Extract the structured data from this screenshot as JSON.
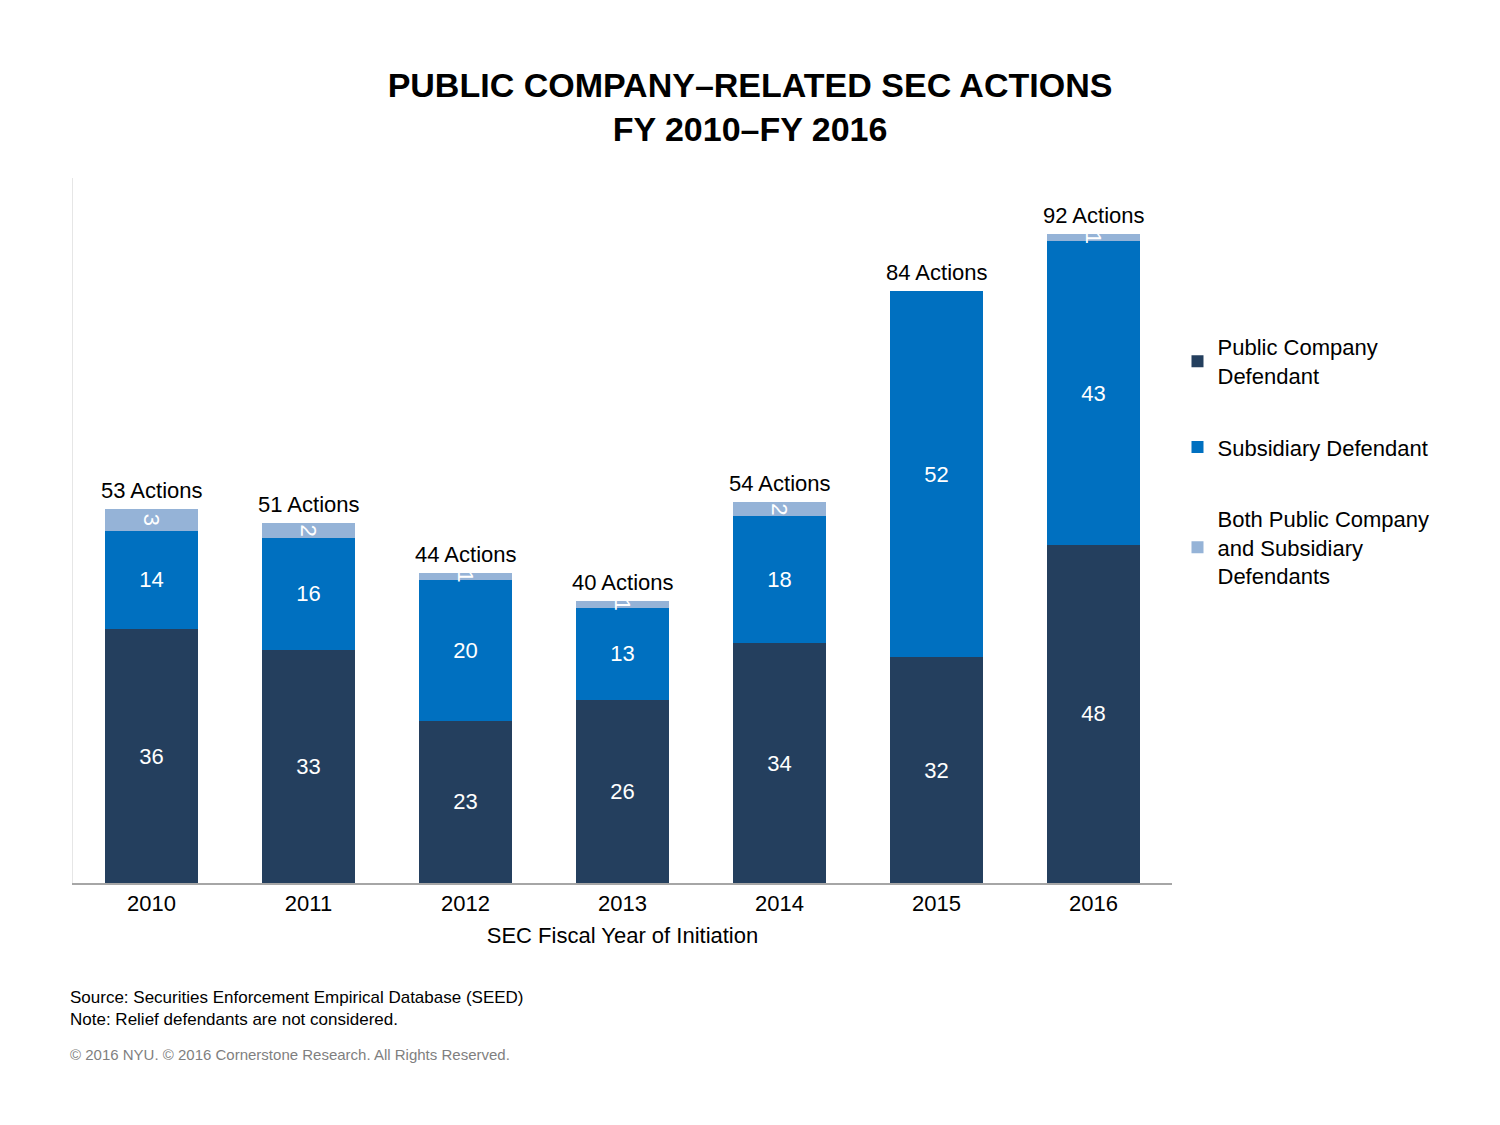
{
  "chart_data": {
    "type": "bar",
    "title": "PUBLIC COMPANY–RELATED SEC ACTIONS\nFY 2010–FY 2016",
    "x_label": "SEC Fiscal Year of Initiation",
    "categories": [
      "2010",
      "2011",
      "2012",
      "2013",
      "2014",
      "2015",
      "2016"
    ],
    "series": [
      {
        "name": "Public Company Defendant",
        "color": "#243f5e",
        "values": [
          36,
          33,
          23,
          26,
          34,
          32,
          48
        ]
      },
      {
        "name": "Subsidiary Defendant",
        "color": "#0070c0",
        "values": [
          14,
          16,
          20,
          13,
          18,
          52,
          43
        ]
      },
      {
        "name": "Both Public Company and Subsidiary Defendants",
        "color": "#95b3d7",
        "values": [
          3,
          2,
          1,
          1,
          2,
          null,
          1
        ]
      }
    ],
    "annotations": [
      "53 Actions",
      "51 Actions",
      "44 Actions",
      "40 Actions",
      "54 Actions",
      "84 Actions",
      "92 Actions"
    ],
    "footnotes": [
      "Source: Securities Enforcement Empirical Database (SEED)",
      "Note: Relief defendants are not considered.",
      "© 2016 NYU. © 2016 Cornerstone Research. All Rights Reserved."
    ],
    "ylim": [
      0,
      100
    ],
    "stacked": true,
    "data_labels": true,
    "legend": "right",
    "grid": false,
    "tick_labels": "x"
  }
}
